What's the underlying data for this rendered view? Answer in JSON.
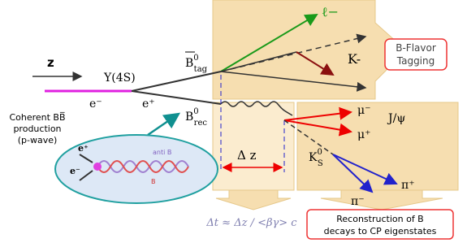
{
  "axis_label": "z",
  "resonance": "Υ(4S)",
  "beams": {
    "electron": "e⁻",
    "positron": "e⁺"
  },
  "b_tag": {
    "symbol": "B",
    "superscript": "0",
    "subscript": "tag"
  },
  "b_rec": {
    "symbol": "B",
    "superscript": "0",
    "subscript": "rec"
  },
  "tag_products": {
    "lepton": "ℓ−",
    "kaon": "K-"
  },
  "tagging_box": [
    "B-Flavor",
    "Tagging"
  ],
  "production": [
    "Coherent BB̅",
    "production",
    "(p-wave)"
  ],
  "inset": {
    "e_plus": "e⁺",
    "e_minus": "e⁻",
    "anti_b": "anti B",
    "b": "B"
  },
  "rec_products": {
    "mu_minus": "μ⁻",
    "jpsi": "J/ψ",
    "mu_plus": "μ⁺",
    "ks_symbol": "K",
    "ks_superscript": "0",
    "ks_subscript": "S",
    "pi_plus": "π⁺",
    "pi_minus": "π⁻"
  },
  "delta_z": "Δ z",
  "delta_t": "Δt ≈ Δz / <βγ> c",
  "reconstruction_box": [
    "Reconstruction of B",
    "decays to CP eigenstates"
  ]
}
